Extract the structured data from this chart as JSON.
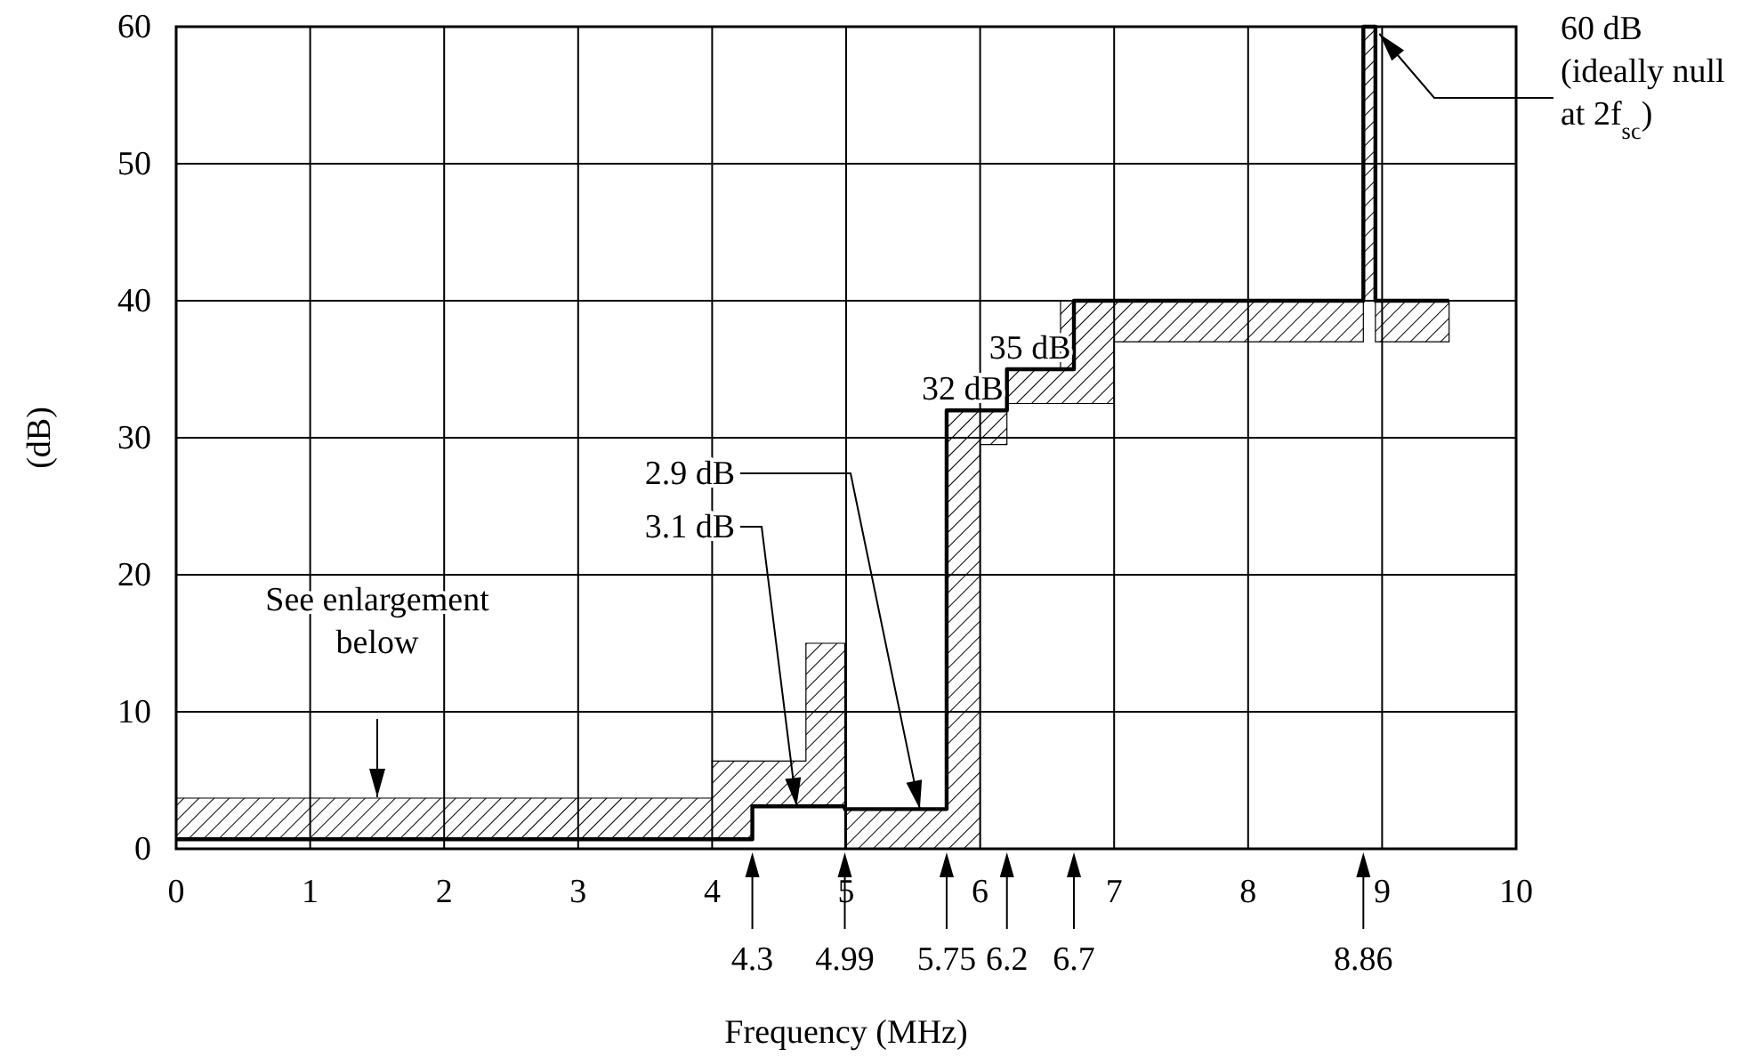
{
  "chart_data": {
    "type": "step",
    "xlabel": "Frequency (MHz)",
    "ylabel": "(dB)",
    "xlim": [
      0,
      10
    ],
    "ylim": [
      0,
      60
    ],
    "xticks": [
      0,
      1,
      2,
      3,
      4,
      5,
      6,
      7,
      8,
      9,
      10
    ],
    "yticks": [
      0,
      10,
      20,
      30,
      40,
      50,
      60
    ],
    "grid": true,
    "x2lim": [
      0,
      10
    ],
    "x2ticks": [
      4.3,
      4.99,
      5.75,
      6.2,
      6.7,
      8.86
    ],
    "series": [
      {
        "color": "#000000",
        "x": [
          0,
          4,
          4.3,
          4.7,
          4.99,
          5.75,
          6,
          6.2,
          6.6,
          6.7,
          7,
          8.86,
          8.95,
          9.5
        ],
        "values": [
          0.7,
          0.7,
          3.1,
          3.1,
          2.9,
          32,
          32,
          35,
          35,
          40,
          40,
          60,
          40,
          40
        ],
        "lower": [
          0.7,
          0.7,
          3.1,
          3.1,
          0,
          0,
          29.5,
          32.5,
          32.5,
          32.5,
          37,
          40,
          37,
          37
        ],
        "upper": [
          3.7,
          6.4,
          6.4,
          15,
          2.9,
          32,
          32,
          35,
          40,
          40,
          40,
          60,
          40,
          40
        ]
      }
    ],
    "annotations": [
      "See enlargement below",
      {
        "text": "2.9 dB",
        "x": 5.55,
        "y": 2.9
      },
      {
        "text": "3.1 dB",
        "x": 4.63,
        "y": 3.1
      },
      {
        "text": "32 dB",
        "x": 5.75,
        "y": 32
      },
      {
        "text": "35 dB",
        "x": 6.2,
        "y": 35
      },
      {
        "text": "60 dB (ideally null at 2f$_{sc}$)",
        "x": 8.9,
        "y": 60
      }
    ]
  }
}
